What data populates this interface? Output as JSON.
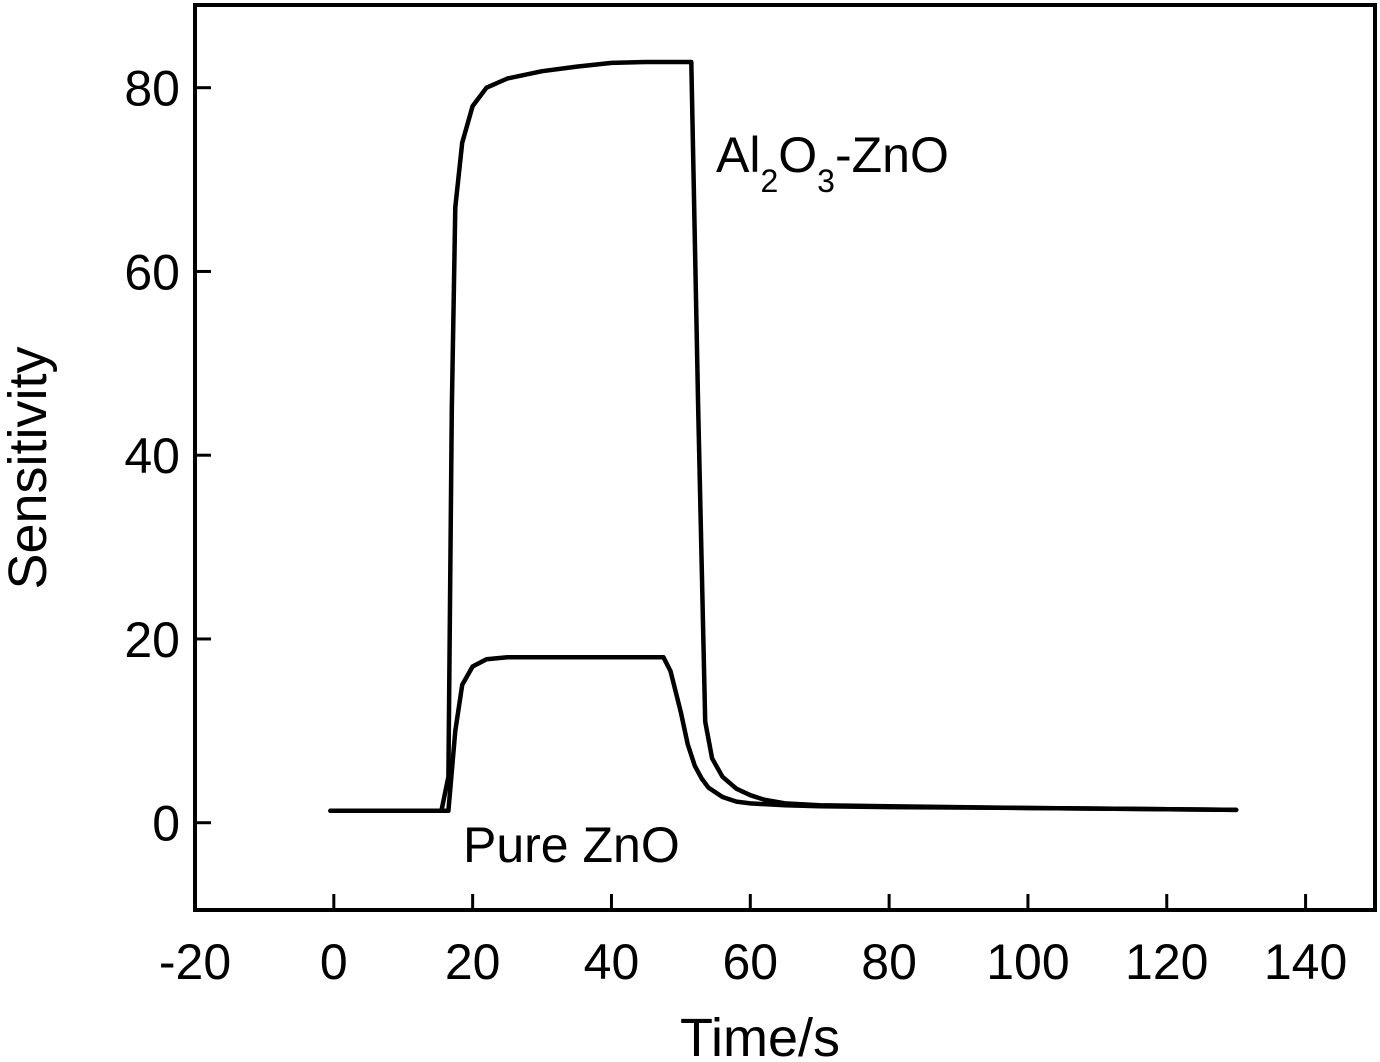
{
  "chart_data": {
    "type": "line",
    "title": "",
    "xlabel": "Time/s",
    "ylabel": "Sensitivity",
    "xlim": [
      -20,
      150
    ],
    "ylim": [
      -9.5,
      89
    ],
    "xticks": [
      -20,
      0,
      20,
      40,
      60,
      80,
      100,
      120,
      140
    ],
    "yticks": [
      0,
      20,
      40,
      60,
      80
    ],
    "grid": false,
    "legend": "none",
    "series": [
      {
        "label_main": "Al",
        "label_sub1": "2",
        "label_mid": "O",
        "label_sub2": "3",
        "label_tail": "-ZnO",
        "color": "#000000",
        "x": [
          -0.5,
          15.5,
          16.5,
          17,
          17.5,
          18.5,
          20,
          22,
          25,
          30,
          35,
          40,
          45,
          50,
          51.5,
          52.5,
          53.5,
          54.5,
          56,
          58,
          60,
          62,
          65,
          70,
          80,
          100,
          130
        ],
        "y": [
          1.3,
          1.3,
          5,
          45,
          67,
          74,
          78,
          80,
          81,
          81.8,
          82.3,
          82.7,
          82.8,
          82.8,
          82.8,
          45,
          11,
          7,
          5,
          3.7,
          3,
          2.5,
          2.1,
          1.9,
          1.8,
          1.6,
          1.4
        ]
      },
      {
        "label": "Pure ZnO",
        "color": "#000000",
        "x": [
          -0.5,
          15.5,
          16.5,
          17.5,
          18.5,
          20,
          22,
          25,
          30,
          40,
          47.5,
          48.5,
          50,
          51,
          52,
          53,
          54,
          56,
          58,
          60,
          65,
          70,
          80,
          100,
          130
        ],
        "y": [
          1.3,
          1.3,
          1.3,
          10,
          15,
          17,
          17.8,
          18,
          18,
          18,
          18,
          16.5,
          12,
          8.5,
          6.2,
          4.8,
          3.8,
          2.8,
          2.3,
          2.1,
          1.9,
          1.8,
          1.7,
          1.6,
          1.4
        ]
      }
    ]
  }
}
